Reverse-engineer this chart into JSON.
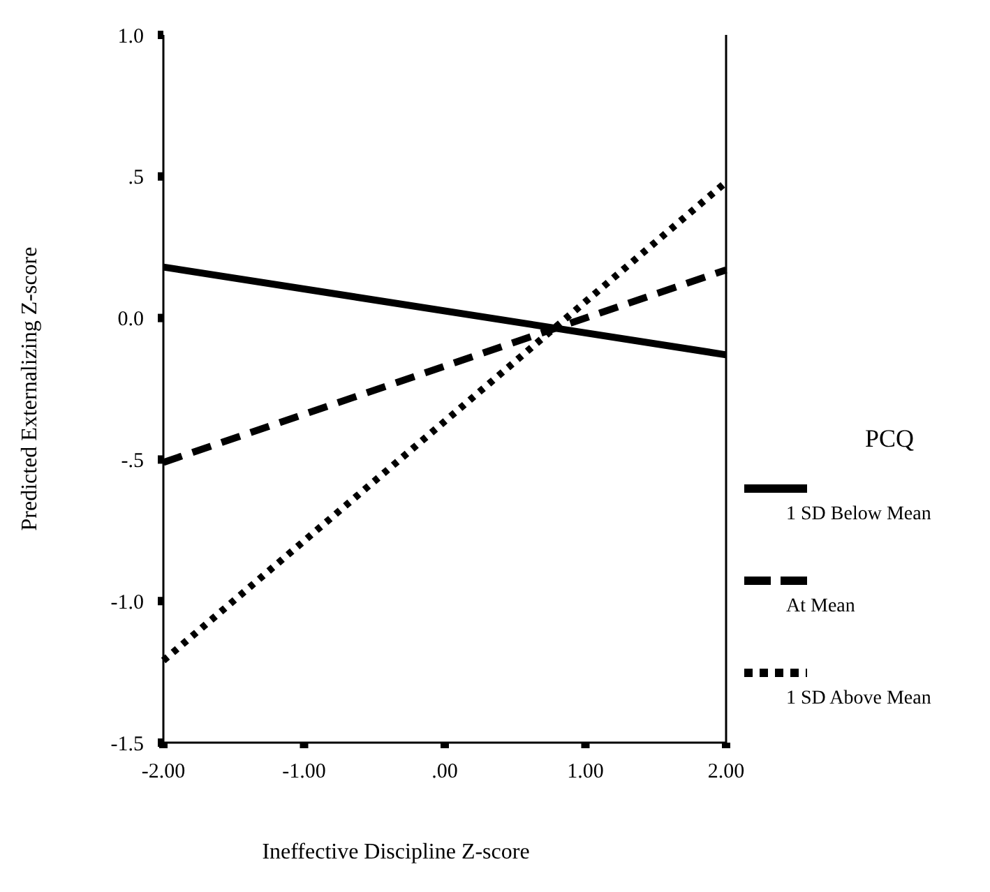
{
  "chart_data": {
    "type": "line",
    "xlabel": "Ineffective Discipline Z-score",
    "ylabel": "Predicted Externalizing Z-score",
    "legend_title": "PCQ",
    "legend": "right",
    "xlim": [
      -2,
      2
    ],
    "ylim": [
      -1.5,
      1.0
    ],
    "xticks": [
      {
        "value": -2,
        "label": "-2.00"
      },
      {
        "value": -1,
        "label": "-1.00"
      },
      {
        "value": 0,
        "label": ".00"
      },
      {
        "value": 1,
        "label": "1.00"
      },
      {
        "value": 2,
        "label": "2.00"
      }
    ],
    "yticks": [
      {
        "value": -1.5,
        "label": "-1.5"
      },
      {
        "value": -1,
        "label": "-1.0"
      },
      {
        "value": -0.5,
        "label": "-.5"
      },
      {
        "value": 0,
        "label": "0.0"
      },
      {
        "value": 0.5,
        "label": ".5"
      },
      {
        "value": 1,
        "label": "1.0"
      }
    ],
    "x": [
      -2,
      2
    ],
    "series": [
      {
        "name": "1 SD Below Mean",
        "color": "#000000",
        "line_style": "solid",
        "values": [
          0.18,
          -0.13
        ]
      },
      {
        "name": "At Mean",
        "color": "#000000",
        "line_style": "dashed",
        "values": [
          -0.51,
          0.17
        ]
      },
      {
        "name": "1 SD Above Mean",
        "color": "#000000",
        "line_style": "dotted",
        "values": [
          -1.21,
          0.48
        ]
      }
    ]
  }
}
